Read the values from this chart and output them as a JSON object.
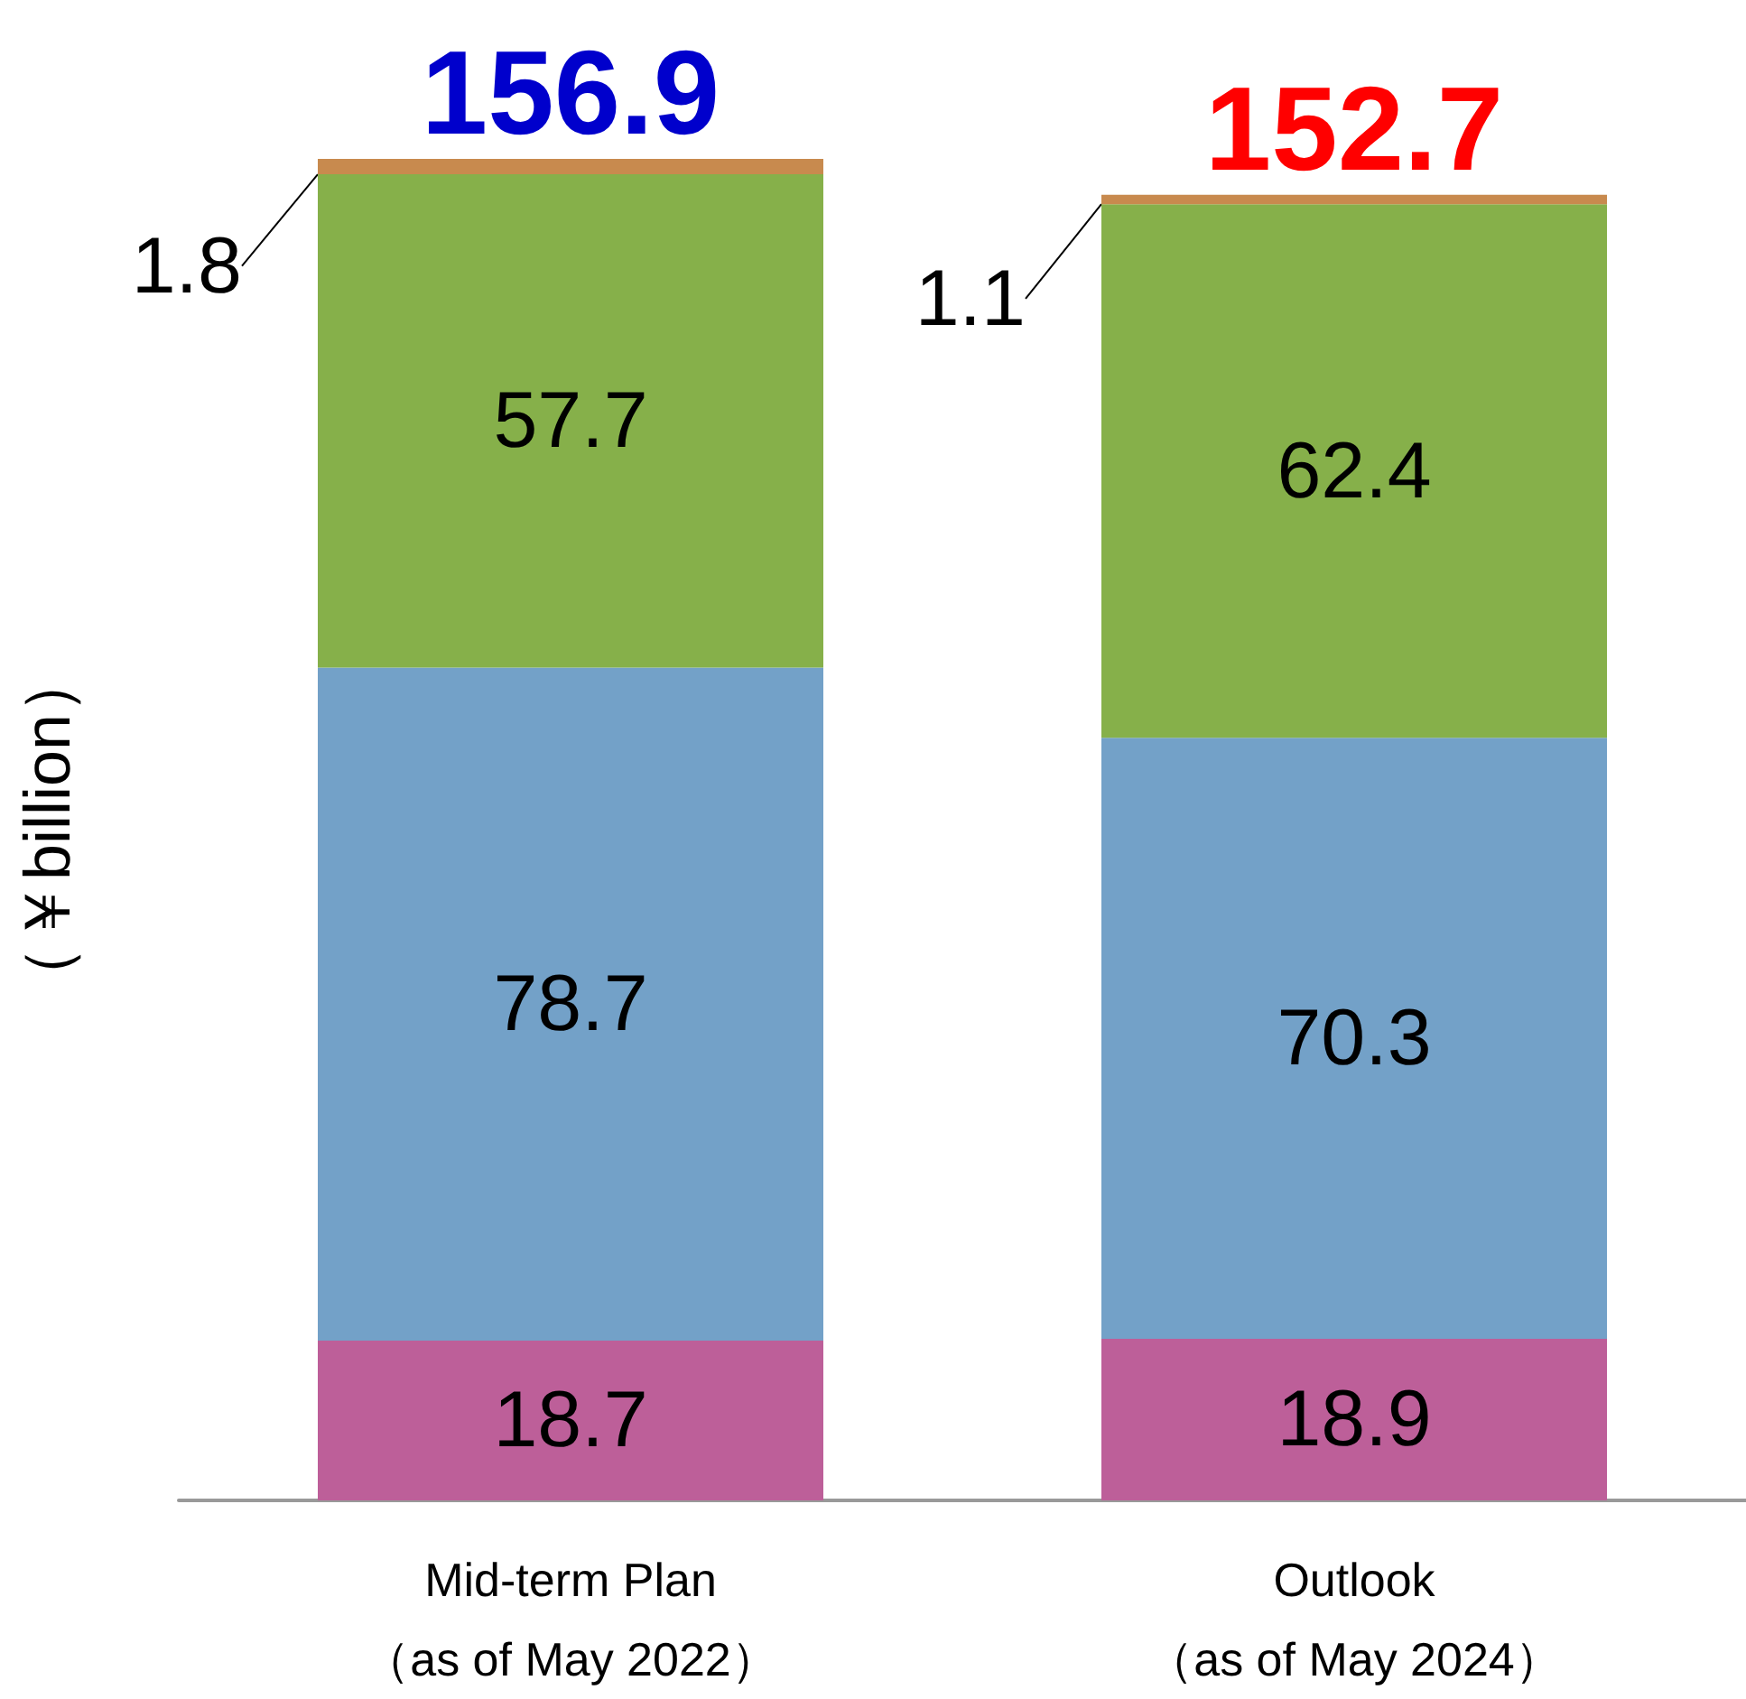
{
  "chart_data": {
    "type": "bar",
    "stacked": true,
    "ylabel": "（￥billion）",
    "categories": [
      "Mid-term Plan\n（as of May 2022）",
      "Outlook\n（as of May 2024）"
    ],
    "series": [
      {
        "color": "#bd5f99",
        "values": [
          18.7,
          18.9
        ]
      },
      {
        "color": "#73a1c8",
        "values": [
          78.7,
          70.3
        ]
      },
      {
        "color": "#86b04a",
        "values": [
          57.7,
          62.4
        ]
      },
      {
        "color": "#c88a4e",
        "values": [
          1.8,
          1.1
        ]
      }
    ],
    "data_labels": true,
    "totals": [
      "156.9",
      "152.7"
    ]
  }
}
